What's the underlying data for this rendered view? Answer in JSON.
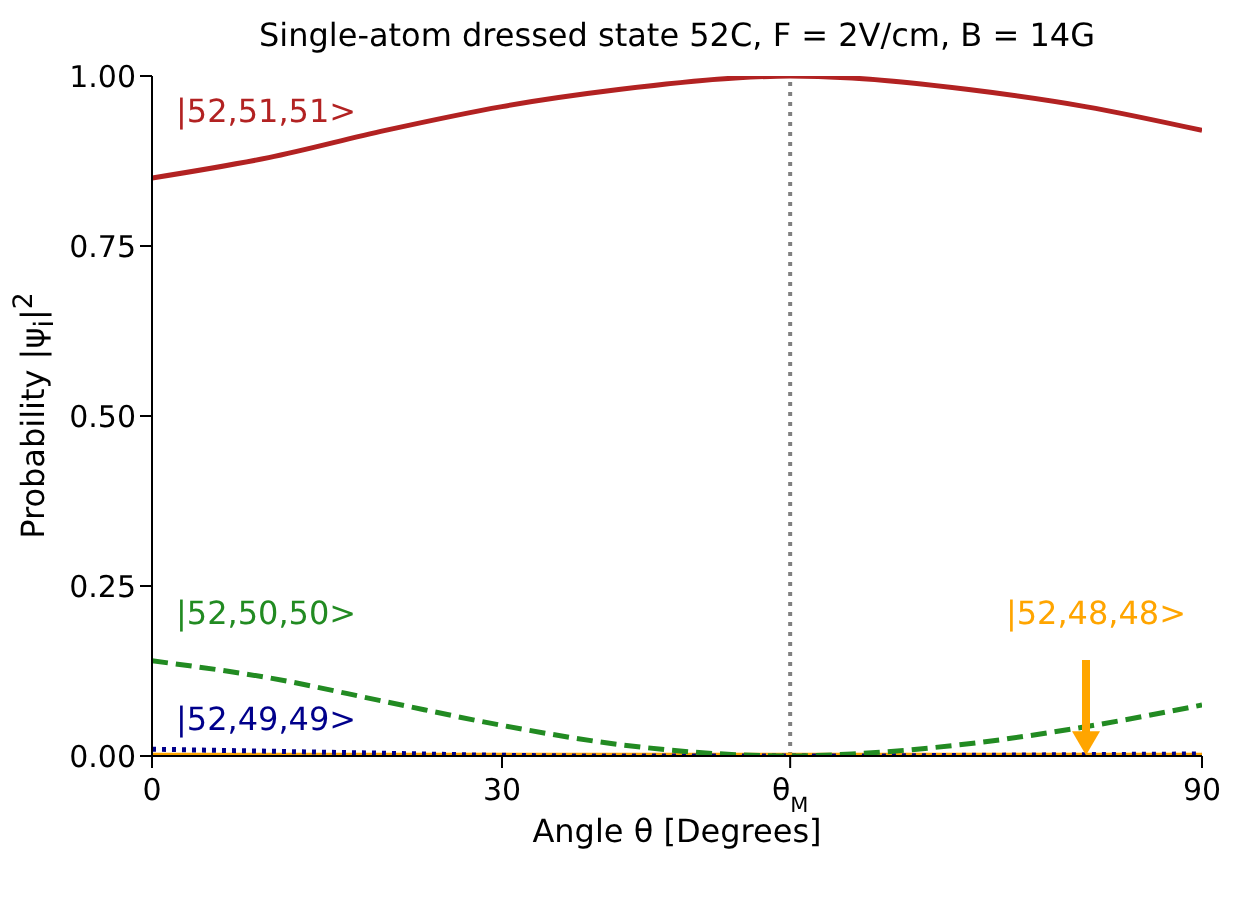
{
  "chart_data": {
    "type": "line",
    "title": "Single-atom dressed state 52C, F = 2V/cm, B = 14G",
    "xlabel": "Angle θ [Degrees]",
    "ylabel": "Probability |ψ$_{i}$|$^{2}$",
    "x": [
      0,
      10,
      20,
      30,
      40,
      50,
      54.7,
      60,
      70,
      80,
      90
    ],
    "series": [
      {
        "name": "|52,51,51>",
        "color": "#b22222",
        "line_style": "solid",
        "values": [
          0.85,
          0.88,
          0.92,
          0.955,
          0.98,
          0.997,
          1.0,
          0.997,
          0.98,
          0.955,
          0.92
        ]
      },
      {
        "name": "|52,50,50>",
        "color": "#228b22",
        "line_style": "dashed",
        "values": [
          0.14,
          0.115,
          0.08,
          0.045,
          0.017,
          0.002,
          0,
          0.003,
          0.018,
          0.043,
          0.075
        ]
      },
      {
        "name": "|52,49,49>",
        "color": "#00008b",
        "line_style": "dotted",
        "values": [
          0.01,
          0.007,
          0.004,
          0.001,
          0,
          0,
          0,
          0,
          0.001,
          0.002,
          0.003
        ]
      },
      {
        "name": "|52,48,48>",
        "color": "#ffa500",
        "line_style": "solid",
        "values": [
          0.001,
          0.001,
          0.001,
          0.001,
          0.001,
          0.001,
          0.001,
          0.001,
          0.001,
          0.001,
          0.001
        ]
      }
    ],
    "xlim": [
      0,
      90
    ],
    "xticks": [
      0,
      30,
      {
        "value": 54.7,
        "label": "θ$_{M}$"
      },
      90
    ],
    "ylim": [
      0,
      1
    ],
    "yticks": [
      {
        "value": 0,
        "label": "0.00"
      },
      {
        "value": 0.25,
        "label": "0.25"
      },
      {
        "value": 0.5,
        "label": "0.50"
      },
      {
        "value": 0.75,
        "label": "0.75"
      },
      {
        "value": 1,
        "label": "1.00"
      }
    ],
    "ref_lines": [
      {
        "axis": "x",
        "value": 54.7,
        "color": "#808080",
        "line_style": "dotted"
      }
    ]
  }
}
